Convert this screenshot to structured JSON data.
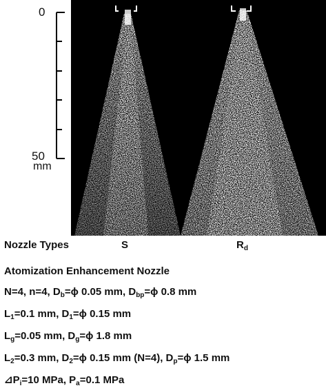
{
  "scale": {
    "top_label": "0",
    "bottom_label": "50",
    "unit": "mm"
  },
  "nozzle_types": {
    "label": "Nozzle Types",
    "left": "S",
    "right": {
      "main": "R",
      "sub": "d"
    }
  },
  "caption": {
    "title": "Atomization Enhancement Nozzle",
    "lines": [
      [
        "N=4, n=4, D",
        {
          "sub": "b"
        },
        "=ϕ 0.05 mm, D",
        {
          "sub": "bp"
        },
        "=ϕ 0.8 mm"
      ],
      [
        "L",
        {
          "sub": "1"
        },
        "=0.1 mm, D",
        {
          "sub": "1"
        },
        "=ϕ 0.15 mm"
      ],
      [
        "L",
        {
          "sub": "g"
        },
        "=0.05 mm, D",
        {
          "sub": "g"
        },
        "=ϕ 1.8 mm"
      ],
      [
        "L",
        {
          "sub": "2"
        },
        "=0.3 mm, D",
        {
          "sub": "2"
        },
        "=ϕ 0.15 mm (N=4), D",
        {
          "sub": "p"
        },
        "=ϕ 1.5 mm"
      ],
      [
        "⊿P",
        {
          "sub": "i"
        },
        "=10 MPa, P",
        {
          "sub": "a"
        },
        "=0.1 MPa"
      ]
    ]
  }
}
